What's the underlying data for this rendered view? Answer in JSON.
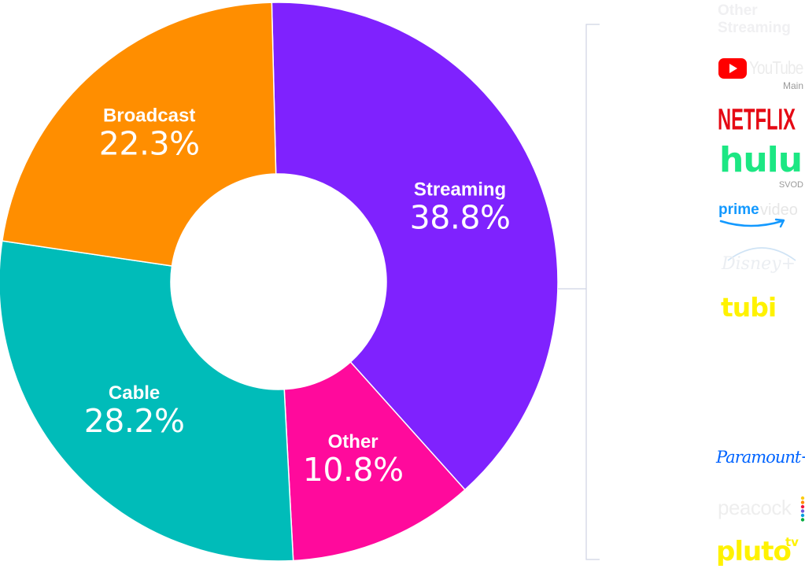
{
  "chart_data": {
    "type": "pie",
    "donut": true,
    "title": "",
    "slices": [
      {
        "label": "Streaming",
        "value": 38.8,
        "display": "38.8%",
        "color": "#7f22fe"
      },
      {
        "label": "Other",
        "value": 10.8,
        "display": "10.8%",
        "color": "#ff0a9c"
      },
      {
        "label": "Cable",
        "value": 28.2,
        "display": "28.2%",
        "color": "#00bcb9"
      },
      {
        "label": "Broadcast",
        "value": 22.3,
        "display": "22.3%",
        "color": "#ff8e00"
      }
    ],
    "legend": {
      "placement": "right",
      "header": "Other\nStreaming",
      "logos": [
        {
          "name": "YouTube",
          "sub": "Main",
          "color": "#ff0000",
          "icon": "youtube-logo"
        },
        {
          "name": "NETFLIX",
          "color": "#e50914",
          "icon": "netflix-logo"
        },
        {
          "name": "hulu",
          "sub": "SVOD",
          "color": "#1ce783",
          "icon": "hulu-logo"
        },
        {
          "name": "prime",
          "name2": "video",
          "color": "#1399ff",
          "icon": "prime-video-logo"
        },
        {
          "name": "Disney+",
          "color": "#e8ecf2",
          "icon": "disney-plus-logo"
        },
        {
          "name": "tubi",
          "color": "#fff200",
          "icon": "tubi-logo"
        },
        {
          "name": "Paramount+",
          "color": "#0064ff",
          "icon": "paramount-plus-logo"
        },
        {
          "name": "peacock",
          "color": "#eeeeee",
          "icon": "peacock-logo"
        },
        {
          "name": "pluto",
          "name2": "tv",
          "color": "#fff200",
          "icon": "pluto-tv-logo"
        }
      ]
    }
  }
}
